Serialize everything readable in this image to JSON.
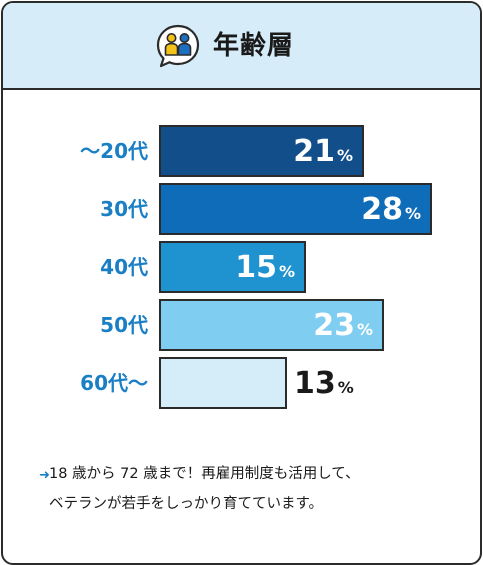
{
  "header": {
    "title": "年齢層",
    "icon": "people-icon"
  },
  "chart_data": {
    "type": "bar",
    "orientation": "horizontal",
    "categories": [
      "～20代",
      "30代",
      "40代",
      "50代",
      "60代～"
    ],
    "values": [
      21,
      28,
      15,
      23,
      13
    ],
    "value_unit": "%",
    "xlim": [
      0,
      28
    ],
    "grid": false,
    "legend": "none",
    "bar_colors": [
      "#124f8a",
      "#0f6cb8",
      "#1f93d0",
      "#7fcdf1",
      "#d5ecf9"
    ],
    "label_color": "#1a7fc4"
  },
  "note": {
    "lines": [
      "18 歳から 72 歳まで！再雇用制度も活用して、",
      "ベテランが若手をしっかり育てています。"
    ]
  }
}
